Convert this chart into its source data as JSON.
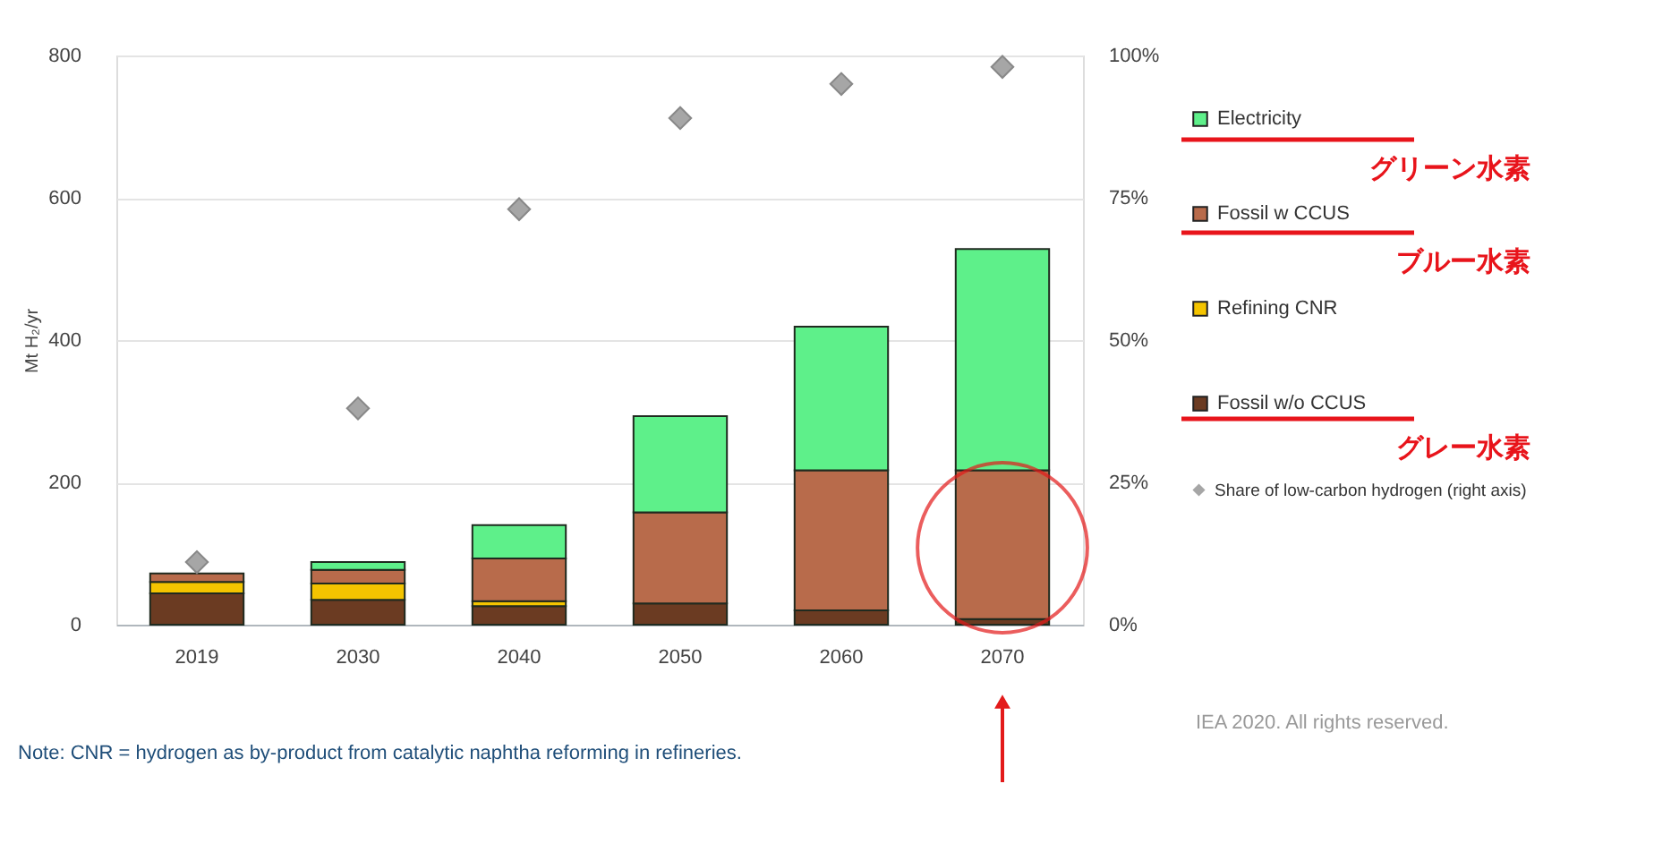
{
  "chart_data": {
    "type": "bar",
    "stacked": true,
    "ylabel": "Mt H₂/yr",
    "categories": [
      "2019",
      "2030",
      "2040",
      "2050",
      "2060",
      "2070"
    ],
    "series": [
      {
        "name": "Fossil w/o CCUS",
        "color": "#6b3b22",
        "values": [
          44,
          35,
          26,
          30,
          20,
          8
        ]
      },
      {
        "name": "Refining CNR",
        "color": "#f4c400",
        "values": [
          16,
          23,
          7,
          null,
          null,
          null
        ]
      },
      {
        "name": "Fossil w CCUS",
        "color": "#b86b4b",
        "values": [
          12,
          19,
          60,
          128,
          197,
          209
        ]
      },
      {
        "name": "Electricity",
        "color": "#5ef08a",
        "values": [
          null,
          11,
          47,
          135,
          202,
          311
        ]
      },
      {
        "name": "Share of low-carbon hydrogen (right axis)",
        "type": "scatter",
        "axis": "y2",
        "marker": "diamond",
        "color": "#a6a6a6",
        "values": [
          11,
          38,
          73,
          89,
          95,
          98
        ]
      }
    ],
    "ylim": [
      0,
      800
    ],
    "yticks": [
      0,
      200,
      400,
      600,
      800
    ],
    "y2lim": [
      0,
      100
    ],
    "y2ticks": [
      {
        "value": 0,
        "label": "0%"
      },
      {
        "value": 25,
        "label": "25%"
      },
      {
        "value": 50,
        "label": "50%"
      },
      {
        "value": 75,
        "label": "75%"
      },
      {
        "value": 100,
        "label": "100%"
      }
    ],
    "grid": "y",
    "legend": "right",
    "annotations": [
      "グリーン水素",
      "ブルー水素",
      "グレー水素",
      "Note: CNR = hydrogen as by-product from catalytic naphtha reforming in refineries.",
      "IEA 2020. All rights reserved."
    ]
  }
}
